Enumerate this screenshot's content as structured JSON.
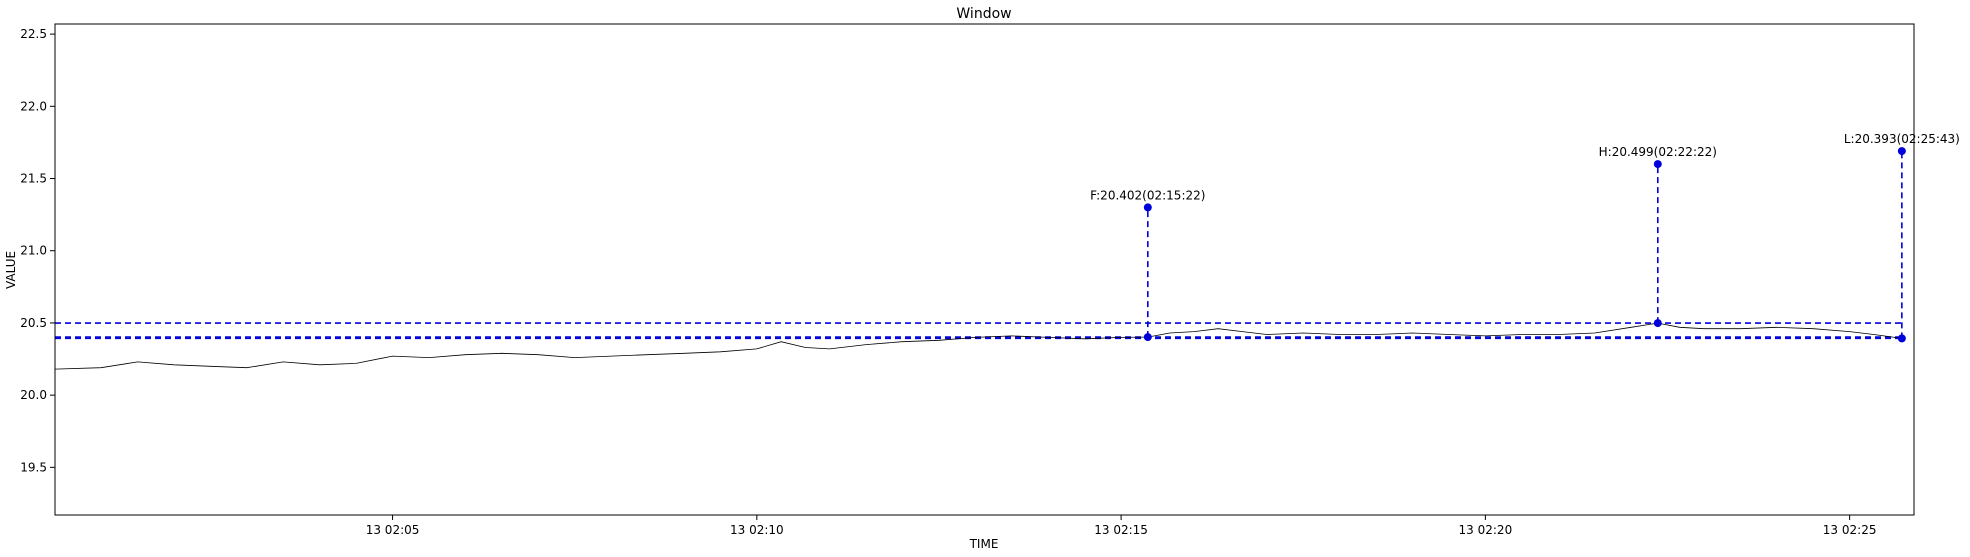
{
  "chart_data": {
    "type": "line",
    "title": "Window",
    "xlabel": "TIME",
    "ylabel": "VALUE",
    "xlim": [
      "13 02:00:22",
      "13 02:25:53"
    ],
    "ylim": [
      19.17,
      22.57
    ],
    "grid": false,
    "colors": {
      "series": "#000000",
      "markers": "#0000dd"
    },
    "x_ticks": [
      {
        "t": "13 02:05:00",
        "label": "13 02:05"
      },
      {
        "t": "13 02:10:00",
        "label": "13 02:10"
      },
      {
        "t": "13 02:15:00",
        "label": "13 02:15"
      },
      {
        "t": "13 02:20:00",
        "label": "13 02:20"
      },
      {
        "t": "13 02:25:00",
        "label": "13 02:25"
      }
    ],
    "y_ticks": [
      "19.5",
      "20.0",
      "20.5",
      "21.0",
      "21.5",
      "22.0",
      "22.5"
    ],
    "series": [
      {
        "x": [
          "13 02:00:22",
          "13 02:01:00",
          "13 02:01:30",
          "13 02:02:00",
          "13 02:02:30",
          "13 02:03:00",
          "13 02:03:30",
          "13 02:04:00",
          "13 02:04:30",
          "13 02:05:00",
          "13 02:05:30",
          "13 02:06:00",
          "13 02:06:30",
          "13 02:07:00",
          "13 02:07:30",
          "13 02:08:00",
          "13 02:08:30",
          "13 02:09:00",
          "13 02:09:30",
          "13 02:10:00",
          "13 02:10:20",
          "13 02:10:40",
          "13 02:11:00",
          "13 02:11:30",
          "13 02:12:00",
          "13 02:12:30",
          "13 02:13:00",
          "13 02:13:30",
          "13 02:14:00",
          "13 02:14:30",
          "13 02:15:00",
          "13 02:15:22",
          "13 02:15:40",
          "13 02:16:00",
          "13 02:16:20",
          "13 02:16:40",
          "13 02:17:00",
          "13 02:17:30",
          "13 02:18:00",
          "13 02:18:30",
          "13 02:19:00",
          "13 02:19:30",
          "13 02:20:00",
          "13 02:20:30",
          "13 02:21:00",
          "13 02:21:30",
          "13 02:22:00",
          "13 02:22:22",
          "13 02:22:40",
          "13 02:23:00",
          "13 02:23:30",
          "13 02:24:00",
          "13 02:24:30",
          "13 02:25:00",
          "13 02:25:20",
          "13 02:25:43"
        ],
        "y": [
          20.18,
          20.19,
          20.23,
          20.21,
          20.2,
          20.19,
          20.23,
          20.21,
          20.22,
          20.27,
          20.26,
          20.28,
          20.29,
          20.28,
          20.26,
          20.27,
          20.28,
          20.29,
          20.3,
          20.32,
          20.37,
          20.33,
          20.32,
          20.35,
          20.37,
          20.38,
          20.4,
          20.41,
          20.4,
          20.39,
          20.4,
          20.402,
          20.43,
          20.44,
          20.46,
          20.44,
          20.42,
          20.43,
          20.42,
          20.42,
          20.43,
          20.42,
          20.41,
          20.42,
          20.42,
          20.43,
          20.47,
          20.499,
          20.47,
          20.46,
          20.46,
          20.47,
          20.46,
          20.44,
          20.42,
          20.393
        ]
      }
    ],
    "markers": [
      {
        "key": "F",
        "t": "13 02:15:22",
        "value": 20.402,
        "stem_top": 21.3,
        "label": "F:20.402(02:15:22)"
      },
      {
        "key": "H",
        "t": "13 02:22:22",
        "value": 20.499,
        "stem_top": 21.6,
        "label": "H:20.499(02:22:22)"
      },
      {
        "key": "L",
        "t": "13 02:25:43",
        "value": 20.393,
        "stem_top": 21.69,
        "label": "L:20.393(02:25:43)"
      }
    ],
    "reference_lines": [
      20.499,
      20.402,
      20.393
    ]
  }
}
